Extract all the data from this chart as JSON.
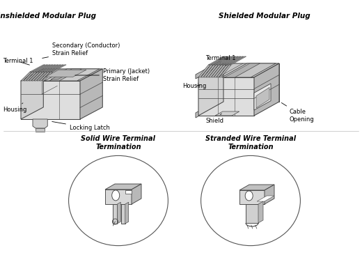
{
  "bg_color": "#ffffff",
  "title_unshielded": "Unshielded Modular Plug",
  "title_shielded": "Shielded Modular Plug",
  "title_solid": "Solid Wire Terminal\nTermination",
  "title_stranded": "Stranded Wire Terminal\nTermination",
  "fig_width": 5.2,
  "fig_height": 3.66,
  "dpi": 100,
  "lc": "#555555",
  "lc_dark": "#333333",
  "face_light": "#e8e8e8",
  "face_mid": "#cccccc",
  "face_dark": "#b0b0b0"
}
